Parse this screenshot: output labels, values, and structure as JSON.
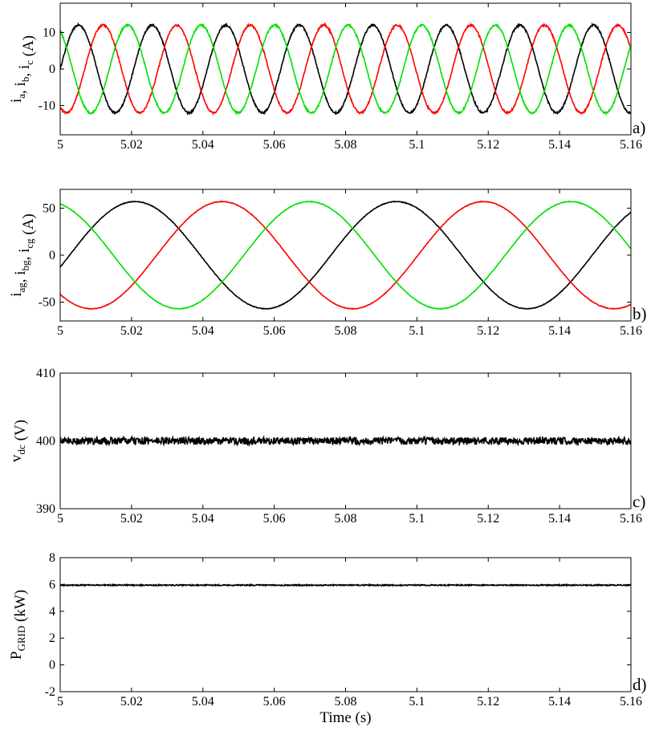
{
  "chart_data": [
    {
      "type": "line",
      "panel_label": "a)",
      "ylabel": {
        "segments": [
          {
            "t": "i"
          },
          {
            "t": "a",
            "sub": true
          },
          {
            "t": ", i"
          },
          {
            "t": "b",
            "sub": true
          },
          {
            "t": ", i"
          },
          {
            "t": "c",
            "sub": true
          },
          {
            "t": " (A)"
          }
        ]
      },
      "xlim": [
        5,
        5.16
      ],
      "ylim": [
        -18,
        18
      ],
      "yticks": [
        -10,
        0,
        10
      ],
      "xticks": [
        "5",
        "5.02",
        "5.04",
        "5.06",
        "5.08",
        "5.1",
        "5.12",
        "5.14",
        "5.16"
      ],
      "grid": false,
      "signal": {
        "kind": "sine3",
        "amplitude": 12,
        "frequency_hz": 48.5,
        "phase_deg": 0,
        "ripple": 0.25
      },
      "series": [
        {
          "color": "#000000",
          "phase_offset_deg": 0
        },
        {
          "color": "#ff0000",
          "phase_offset_deg": -120
        },
        {
          "color": "#00e000",
          "phase_offset_deg": 120
        }
      ]
    },
    {
      "type": "line",
      "panel_label": "b)",
      "ylabel": {
        "segments": [
          {
            "t": "i"
          },
          {
            "t": "ag",
            "sub": true
          },
          {
            "t": ", i"
          },
          {
            "t": "bg",
            "sub": true
          },
          {
            "t": ", i"
          },
          {
            "t": "cg",
            "sub": true
          },
          {
            "t": " (A)"
          }
        ]
      },
      "xlim": [
        5,
        5.16
      ],
      "ylim": [
        -70,
        70
      ],
      "yticks": [
        -50,
        0,
        50
      ],
      "xticks": [
        "5",
        "5.02",
        "5.04",
        "5.06",
        "5.08",
        "5.1",
        "5.12",
        "5.14",
        "5.16"
      ],
      "grid": false,
      "signal": {
        "kind": "sine3",
        "amplitude": 57,
        "frequency_hz": 13.65,
        "phase_deg": -13,
        "ripple": 0.3
      },
      "series": [
        {
          "color": "#000000",
          "phase_offset_deg": 0
        },
        {
          "color": "#ff0000",
          "phase_offset_deg": -120
        },
        {
          "color": "#00e000",
          "phase_offset_deg": 120
        }
      ]
    },
    {
      "type": "line",
      "panel_label": "c)",
      "ylabel": {
        "segments": [
          {
            "t": "v"
          },
          {
            "t": "dc",
            "sub": true
          },
          {
            "t": " (V)"
          }
        ]
      },
      "xlim": [
        5,
        5.16
      ],
      "ylim": [
        390,
        410
      ],
      "yticks": [
        390,
        400,
        410
      ],
      "xticks": [
        "5",
        "5.02",
        "5.04",
        "5.06",
        "5.08",
        "5.1",
        "5.12",
        "5.14",
        "5.16"
      ],
      "grid": false,
      "signal": {
        "kind": "noisy_constant",
        "mean": 400,
        "noise": 0.55
      },
      "series": [
        {
          "color": "#000000"
        }
      ]
    },
    {
      "type": "line",
      "panel_label": "d)",
      "ylabel": {
        "segments": [
          {
            "t": "P"
          },
          {
            "t": "GRID",
            "sub": true
          },
          {
            "t": " (kW)"
          }
        ]
      },
      "xlabel": "Time (s)",
      "xlim": [
        5,
        5.16
      ],
      "ylim": [
        -2,
        8
      ],
      "yticks": [
        -2,
        0,
        2,
        4,
        6,
        8
      ],
      "xticks": [
        "5",
        "5.02",
        "5.04",
        "5.06",
        "5.08",
        "5.1",
        "5.12",
        "5.14",
        "5.16"
      ],
      "grid": false,
      "signal": {
        "kind": "noisy_constant",
        "mean": 5.95,
        "noise": 0.04
      },
      "series": [
        {
          "color": "#000000"
        }
      ]
    }
  ]
}
